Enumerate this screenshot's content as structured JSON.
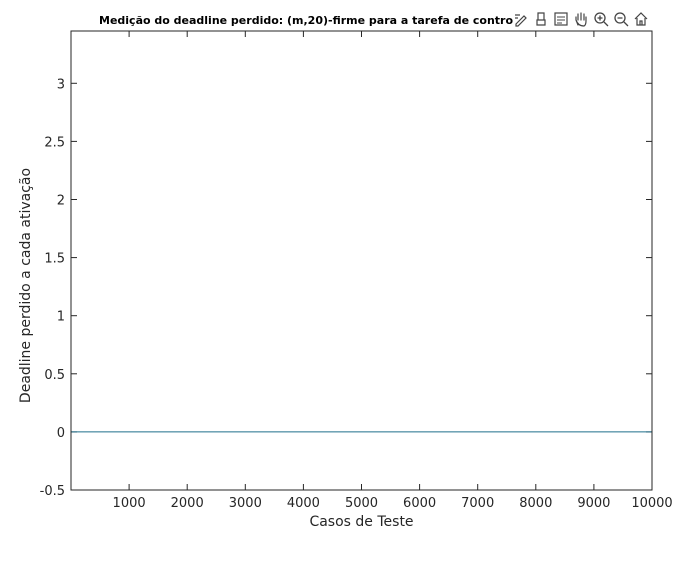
{
  "toolbar": {
    "icons": [
      "edit-icon",
      "brush-icon",
      "legend-icon",
      "pan-icon",
      "zoom-in-icon",
      "zoom-out-icon",
      "home-icon"
    ]
  },
  "colors": {
    "series": "#1f6f8b",
    "axis": "#262626",
    "background": "#ffffff"
  },
  "chart_data": {
    "type": "line",
    "title": "Medição do deadline perdido: (m,20)-firme para a tarefa de contro",
    "xlabel": "Casos de Teste",
    "ylabel": "Deadline perdido a cada ativação",
    "xlim": [
      0,
      10000
    ],
    "ylim": [
      -0.5,
      3.45
    ],
    "x_ticks": [
      1000,
      2000,
      3000,
      4000,
      5000,
      6000,
      7000,
      8000,
      9000,
      10000
    ],
    "y_ticks": [
      -0.5,
      0,
      0.5,
      1,
      1.5,
      2,
      2.5,
      3
    ],
    "x_tick_labels": [
      "1000",
      "2000",
      "3000",
      "4000",
      "5000",
      "6000",
      "7000",
      "8000",
      "9000",
      "10000"
    ],
    "y_tick_labels": [
      "-0.5",
      "0",
      "0.5",
      "1",
      "1.5",
      "2",
      "2.5",
      "3"
    ],
    "grid": false,
    "series": [
      {
        "x": [
          0,
          10000
        ],
        "y": [
          0,
          0
        ]
      }
    ]
  }
}
